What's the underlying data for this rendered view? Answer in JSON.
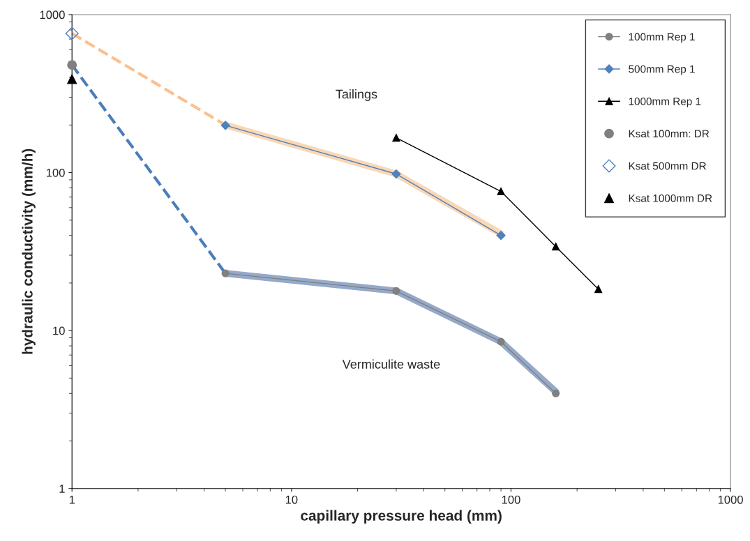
{
  "chart_data": {
    "type": "line",
    "xlabel": "capillary pressure head (mm)",
    "ylabel": "hydraulic conductivity (mm/h)",
    "log": "xy",
    "xlim": [
      1,
      1000
    ],
    "xticks": [
      1,
      10,
      100,
      1000
    ],
    "ylim": [
      1,
      1000
    ],
    "yticks": [
      1,
      10,
      100,
      1000
    ],
    "grid": false,
    "legend": "top right",
    "series": [
      {
        "color": "#fac090",
        "x": [
          1,
          5
        ],
        "values": [
          760,
          200
        ],
        "line_style": "dashed",
        "marker": "none"
      },
      {
        "color": "#4a7ebb",
        "x": [
          1,
          5
        ],
        "values": [
          480,
          23
        ],
        "line_style": "dashed",
        "marker": "none"
      },
      {
        "color": "#fad7b5",
        "x": [
          5,
          30,
          90
        ],
        "values": [
          200,
          98,
          41
        ],
        "line_style": "solid",
        "marker": "none"
      },
      {
        "color": "#95a9c9",
        "x": [
          5,
          30,
          90,
          160
        ],
        "values": [
          23,
          17.8,
          8.5,
          4.1
        ],
        "line_style": "solid",
        "marker": "none"
      },
      {
        "name": "100mm Rep 1",
        "color": "#808080",
        "x": [
          5,
          30,
          90,
          160
        ],
        "values": [
          23,
          17.8,
          8.5,
          4.0
        ],
        "line_style": "solid",
        "marker": "circle"
      },
      {
        "name": "500mm Rep 1",
        "color": "#4f81bd",
        "x": [
          5,
          30,
          90
        ],
        "values": [
          199,
          98,
          40
        ],
        "line_style": "solid",
        "marker": "diamond"
      },
      {
        "name": "1000mm Rep 1",
        "color": "#000000",
        "x": [
          30,
          90,
          160,
          250
        ],
        "values": [
          166,
          76,
          34,
          18.3
        ],
        "line_style": "solid",
        "marker": "triangle"
      },
      {
        "name": "Ksat 100mm: DR",
        "type": "scatter",
        "color": "#808080",
        "x": [
          1
        ],
        "values": [
          480
        ],
        "marker": "circle"
      },
      {
        "name": "Ksat 500mm DR",
        "type": "scatter",
        "color": "#4f81bd",
        "x": [
          1
        ],
        "values": [
          760
        ],
        "marker": "diamond"
      },
      {
        "name": "Ksat 1000mm DR",
        "type": "scatter",
        "color": "#000000",
        "x": [
          1
        ],
        "values": [
          390
        ],
        "marker": "triangle"
      }
    ],
    "annotations": [
      "Tailings",
      "Vermiculite waste"
    ]
  }
}
